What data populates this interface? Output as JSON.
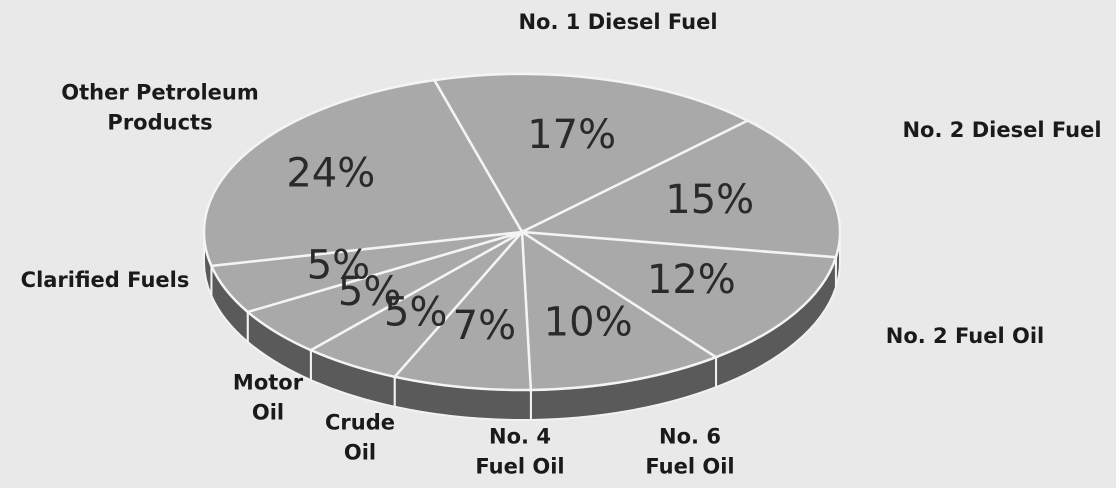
{
  "chart_data": {
    "type": "pie",
    "categories": [
      "No. 1 Diesel Fuel",
      "No. 2 Diesel Fuel",
      "No. 2 Fuel Oil",
      "No. 6 Fuel Oil",
      "No. 4 Fuel Oil",
      "Crude Oil",
      "Motor Oil",
      "Clarified Fuels",
      "Other Petroleum Products"
    ],
    "values": [
      17,
      15,
      12,
      10,
      7,
      5,
      5,
      5,
      24
    ],
    "value_labels": [
      "17%",
      "15%",
      "12%",
      "10%",
      "7%",
      "5%",
      "5%",
      "5%",
      "24%"
    ],
    "color": "#a9a9a9"
  }
}
